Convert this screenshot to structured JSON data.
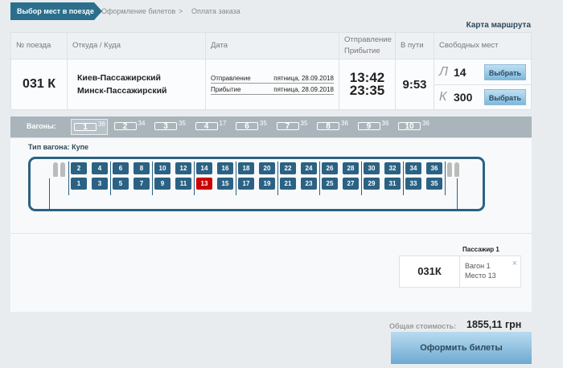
{
  "steps": [
    "Выбор мест в поезде",
    "Оформление билетов",
    "Оплата заказа"
  ],
  "route_map_link": "Карта маршрута",
  "table": {
    "headers": {
      "train": "№ поезда",
      "route": "Откуда / Куда",
      "date": "Дата",
      "time": "Отправление Прибытие",
      "duration": "В пути",
      "free": "Свободных мест"
    },
    "train": "031 К",
    "from": "Киев-Пассажирский",
    "to": "Минск-Пассажирский",
    "dep_label": "Отправление",
    "dep_date": "пятница, 28.09.2018",
    "arr_label": "Прибытие",
    "arr_date": "пятница, 28.09.2018",
    "dep_time": "13:42",
    "arr_time": "23:35",
    "duration": "9:53",
    "classes": [
      {
        "class": "Л",
        "count": "14",
        "button": "Выбрать"
      },
      {
        "class": "К",
        "count": "300",
        "button": "Выбрать"
      }
    ]
  },
  "wagons_label": "Вагоны:",
  "wagons": [
    {
      "n": "1",
      "free": "36",
      "selected": true
    },
    {
      "n": "2",
      "free": "34"
    },
    {
      "n": "3",
      "free": "35"
    },
    {
      "n": "4",
      "free": "17"
    },
    {
      "n": "6",
      "free": "35"
    },
    {
      "n": "7",
      "free": "35"
    },
    {
      "n": "8",
      "free": "36"
    },
    {
      "n": "9",
      "free": "36"
    },
    {
      "n": "10",
      "free": "36"
    }
  ],
  "car_type": "Тип вагона: Купе",
  "seats_total": 36,
  "selected_seat": 13,
  "colors": {
    "seat": "#2b6283",
    "selected": "#cc0000",
    "accent": "#2b6f8c"
  },
  "passenger": {
    "title": "Пассажир 1",
    "train": "031К",
    "wagon": "Вагон 1",
    "seat": "Место 13",
    "close": "×"
  },
  "total_label": "Общая стоимость:",
  "total_value": "1855,11 грн",
  "order_button": "Оформить билеты"
}
